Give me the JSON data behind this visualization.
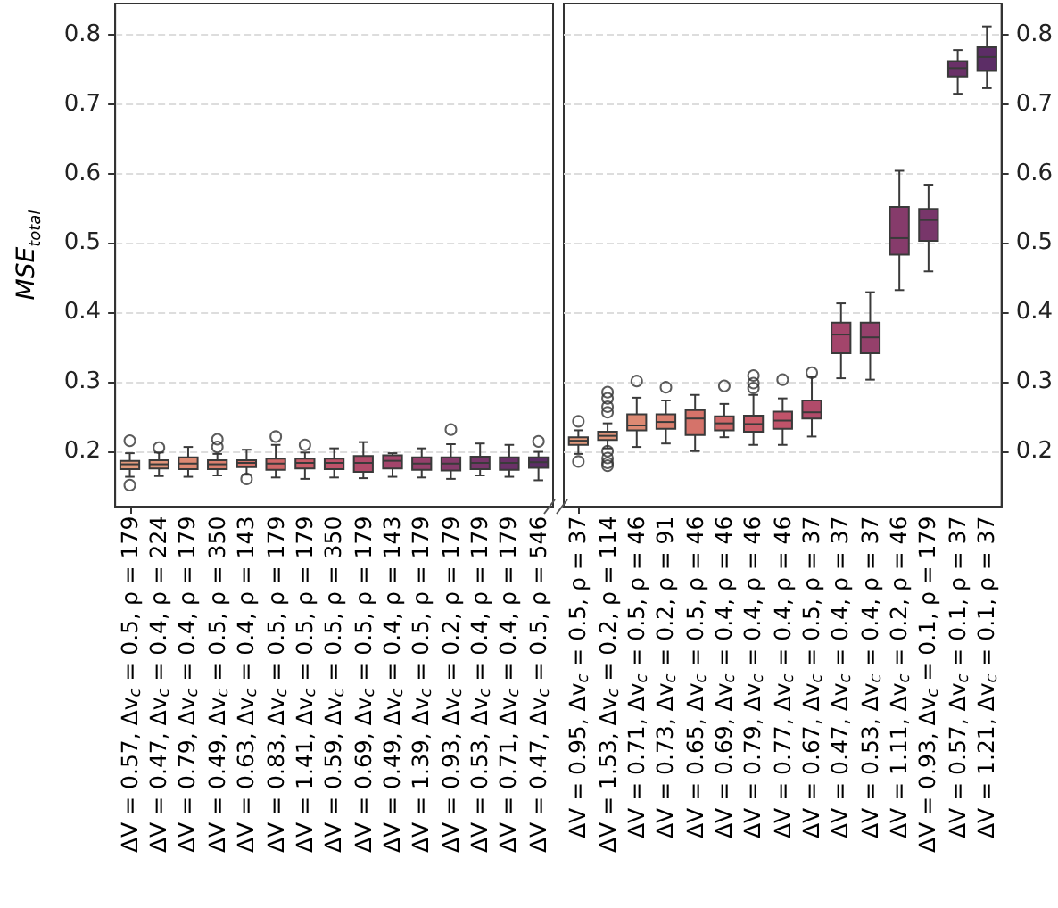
{
  "chart_data": [
    {
      "type": "box",
      "ylabel": "MSE$_{total}$",
      "grid": "y",
      "ylim": [
        0.12,
        0.845
      ],
      "yticks": [
        0.2,
        0.3,
        0.4,
        0.5,
        0.6,
        0.7,
        0.8
      ],
      "categories": [
        "ΔV = 0.57, Δv$_{c}$ = 0.5, ρ = 179",
        "ΔV = 0.47, Δv$_{c}$ = 0.4, ρ = 224",
        "ΔV = 0.79, Δv$_{c}$ = 0.4, ρ = 179",
        "ΔV = 0.49, Δv$_{c}$ = 0.5, ρ = 350",
        "ΔV = 0.63, Δv$_{c}$ = 0.4, ρ = 143",
        "ΔV = 0.83, Δv$_{c}$ = 0.5, ρ = 179",
        "ΔV = 1.41, Δv$_{c}$ = 0.5, ρ = 179",
        "ΔV = 0.59, Δv$_{c}$ = 0.5, ρ = 350",
        "ΔV = 0.69, Δv$_{c}$ = 0.5, ρ = 179",
        "ΔV = 0.49, Δv$_{c}$ = 0.4, ρ = 143",
        "ΔV = 1.39, Δv$_{c}$ = 0.5, ρ = 179",
        "ΔV = 0.93, Δv$_{c}$ = 0.2, ρ = 179",
        "ΔV = 0.53, Δv$_{c}$ = 0.4, ρ = 179",
        "ΔV = 0.71, Δv$_{c}$ = 0.4, ρ = 179",
        "ΔV = 0.47, Δv$_{c}$ = 0.5, ρ = 546"
      ],
      "colors": [
        "#e39a7c",
        "#e0947a",
        "#dd8a73",
        "#da7f6e",
        "#d5736a",
        "#cf6768",
        "#c95c68",
        "#c0536a",
        "#b14b6a",
        "#a3456b",
        "#95406b",
        "#863b6b",
        "#78366a",
        "#6a3168",
        "#5c2d66"
      ],
      "boxes": [
        {
          "low": 0.163,
          "q1": 0.174,
          "median": 0.181,
          "q3": 0.186,
          "high": 0.197,
          "outliers": [
            0.215,
            0.151
          ]
        },
        {
          "low": 0.164,
          "q1": 0.175,
          "median": 0.181,
          "q3": 0.187,
          "high": 0.198,
          "outliers": [
            0.205
          ]
        },
        {
          "low": 0.163,
          "q1": 0.174,
          "median": 0.182,
          "q3": 0.191,
          "high": 0.206
        },
        {
          "low": 0.165,
          "q1": 0.174,
          "median": 0.181,
          "q3": 0.187,
          "high": 0.196,
          "outliers": [
            0.217,
            0.206
          ]
        },
        {
          "low": 0.166,
          "q1": 0.177,
          "median": 0.183,
          "q3": 0.187,
          "high": 0.202,
          "outliers": [
            0.16
          ]
        },
        {
          "low": 0.162,
          "q1": 0.173,
          "median": 0.182,
          "q3": 0.189,
          "high": 0.209,
          "outliers": [
            0.221
          ]
        },
        {
          "low": 0.16,
          "q1": 0.175,
          "median": 0.183,
          "q3": 0.189,
          "high": 0.198,
          "outliers": [
            0.209
          ]
        },
        {
          "low": 0.162,
          "q1": 0.174,
          "median": 0.183,
          "q3": 0.189,
          "high": 0.204
        },
        {
          "low": 0.161,
          "q1": 0.17,
          "median": 0.183,
          "q3": 0.193,
          "high": 0.213
        },
        {
          "low": 0.163,
          "q1": 0.175,
          "median": 0.186,
          "q3": 0.194,
          "high": 0.197
        },
        {
          "low": 0.162,
          "q1": 0.173,
          "median": 0.182,
          "q3": 0.191,
          "high": 0.204
        },
        {
          "low": 0.16,
          "q1": 0.172,
          "median": 0.182,
          "q3": 0.191,
          "high": 0.21,
          "outliers": [
            0.231
          ]
        },
        {
          "low": 0.165,
          "q1": 0.174,
          "median": 0.183,
          "q3": 0.192,
          "high": 0.211
        },
        {
          "low": 0.163,
          "q1": 0.173,
          "median": 0.183,
          "q3": 0.191,
          "high": 0.209
        },
        {
          "low": 0.158,
          "q1": 0.176,
          "median": 0.184,
          "q3": 0.191,
          "high": 0.199,
          "outliers": [
            0.214
          ]
        }
      ]
    },
    {
      "type": "box",
      "grid": "y",
      "y2lim": [
        0.12,
        0.845
      ],
      "y2ticks": [
        0.2,
        0.3,
        0.4,
        0.5,
        0.6,
        0.7,
        0.8
      ],
      "categories": [
        "ΔV = 0.95, Δv$_{c}$ = 0.5, ρ = 37",
        "ΔV = 1.53, Δv$_{c}$ = 0.2, ρ = 114",
        "ΔV = 0.71, Δv$_{c}$ = 0.5, ρ = 46",
        "ΔV = 0.73, Δv$_{c}$ = 0.2, ρ = 91",
        "ΔV = 0.65, Δv$_{c}$ = 0.5, ρ = 46",
        "ΔV = 0.69, Δv$_{c}$ = 0.4, ρ = 46",
        "ΔV = 0.79, Δv$_{c}$ = 0.4, ρ = 46",
        "ΔV = 0.77, Δv$_{c}$ = 0.4, ρ = 46",
        "ΔV = 0.67, Δv$_{c}$ = 0.5, ρ = 37",
        "ΔV = 0.47, Δv$_{c}$ = 0.4, ρ = 37",
        "ΔV = 0.53, Δv$_{c}$ = 0.4, ρ = 37",
        "ΔV = 1.11, Δv$_{c}$ = 0.2, ρ = 46",
        "ΔV = 0.93, Δv$_{c}$ = 0.1, ρ = 179",
        "ΔV = 0.57, Δv$_{c}$ = 0.1, ρ = 37",
        "ΔV = 1.21, Δv$_{c}$ = 0.1, ρ = 37"
      ],
      "series": [
        {
          "axis": "y2",
          "colors": [
            "#e39a7c",
            "#e0947a",
            "#dd8a73",
            "#da7f6e",
            "#d5736a",
            "#cf6768",
            "#c95c68",
            "#c0536a",
            "#b14b6a",
            "#a3456b",
            "#95406b",
            "#863b6b",
            "#78366a",
            "#6a3168",
            "#5c2d66"
          ],
          "boxes": [
            {
              "low": 0.196,
              "q1": 0.209,
              "median": 0.215,
              "q3": 0.22,
              "high": 0.23,
              "outliers": [
                0.243,
                0.185
              ]
            },
            {
              "low": 0.204,
              "q1": 0.216,
              "median": 0.222,
              "q3": 0.228,
              "high": 0.24,
              "outliers": [
                0.285,
                0.276,
                0.264,
                0.256,
                0.2,
                0.19,
                0.183,
                0.179
              ]
            },
            {
              "low": 0.206,
              "q1": 0.23,
              "median": 0.237,
              "q3": 0.253,
              "high": 0.277,
              "outliers": [
                0.301
              ]
            },
            {
              "low": 0.211,
              "q1": 0.232,
              "median": 0.242,
              "q3": 0.253,
              "high": 0.273,
              "outliers": [
                0.292
              ]
            },
            {
              "low": 0.2,
              "q1": 0.223,
              "median": 0.247,
              "q3": 0.259,
              "high": 0.281
            },
            {
              "low": 0.22,
              "q1": 0.23,
              "median": 0.24,
              "q3": 0.25,
              "high": 0.268,
              "outliers": [
                0.294
              ]
            },
            {
              "low": 0.209,
              "q1": 0.228,
              "median": 0.239,
              "q3": 0.251,
              "high": 0.281,
              "outliers": [
                0.309,
                0.298,
                0.291
              ]
            },
            {
              "low": 0.209,
              "q1": 0.232,
              "median": 0.244,
              "q3": 0.257,
              "high": 0.276,
              "outliers": [
                0.303
              ]
            },
            {
              "low": 0.221,
              "q1": 0.247,
              "median": 0.256,
              "q3": 0.273,
              "high": 0.307,
              "outliers": [
                0.313
              ]
            },
            {
              "low": 0.305,
              "q1": 0.341,
              "median": 0.368,
              "q3": 0.385,
              "high": 0.413
            },
            {
              "low": 0.303,
              "q1": 0.341,
              "median": 0.364,
              "q3": 0.385,
              "high": 0.429
            },
            {
              "low": 0.432,
              "q1": 0.483,
              "median": 0.507,
              "q3": 0.552,
              "high": 0.604
            },
            {
              "low": 0.459,
              "q1": 0.503,
              "median": 0.533,
              "q3": 0.549,
              "high": 0.584
            },
            {
              "low": 0.715,
              "q1": 0.74,
              "median": 0.752,
              "q3": 0.762,
              "high": 0.778
            },
            {
              "low": 0.723,
              "q1": 0.748,
              "median": 0.768,
              "q3": 0.782,
              "high": 0.812
            }
          ]
        }
      ]
    }
  ]
}
